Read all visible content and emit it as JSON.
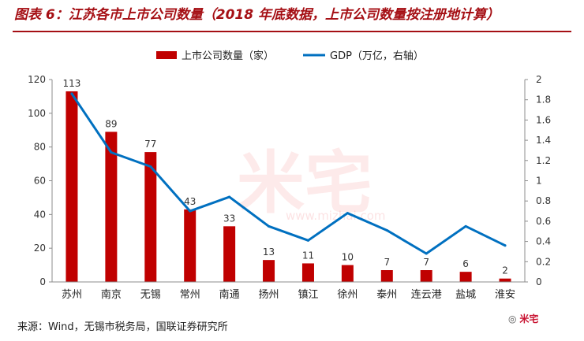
{
  "title": "图表 6：江苏各市上市公司数量（2018 年底数据，上市公司数量按注册地计算）",
  "source": "来源：Wind，无锡市税务局，国联证券研究所",
  "watermark": {
    "logo_text": "米宅",
    "url": "www.mizhai.com",
    "badge_text": "米宅",
    "color": "#e8141b"
  },
  "colors": {
    "bar": "#c00000",
    "line": "#0070c0",
    "title": "#a50f14"
  },
  "chart_data": {
    "type": "bar",
    "categories": [
      "苏州",
      "南京",
      "无锡",
      "常州",
      "南通",
      "扬州",
      "镇江",
      "徐州",
      "泰州",
      "连云港",
      "盐城",
      "淮安"
    ],
    "series": [
      {
        "name": "上市公司数量（家）",
        "type": "bar",
        "axis": "left",
        "values": [
          113,
          89,
          77,
          43,
          33,
          13,
          11,
          10,
          7,
          7,
          6,
          2
        ]
      },
      {
        "name": "GDP（万亿，右轴）",
        "type": "line",
        "axis": "right",
        "values": [
          1.86,
          1.28,
          1.14,
          0.7,
          0.84,
          0.55,
          0.41,
          0.68,
          0.51,
          0.28,
          0.55,
          0.36
        ]
      }
    ],
    "ylim": [
      0,
      120
    ],
    "yticks": [
      "0",
      "20",
      "40",
      "60",
      "80",
      "100",
      "120"
    ],
    "y2lim": [
      0,
      2
    ],
    "y2ticks": [
      "0",
      "0.2",
      "0.4",
      "0.6",
      "0.8",
      "1",
      "1.2",
      "1.4",
      "1.6",
      "1.8",
      "2"
    ],
    "legend_position": "top-center",
    "grid": false
  }
}
